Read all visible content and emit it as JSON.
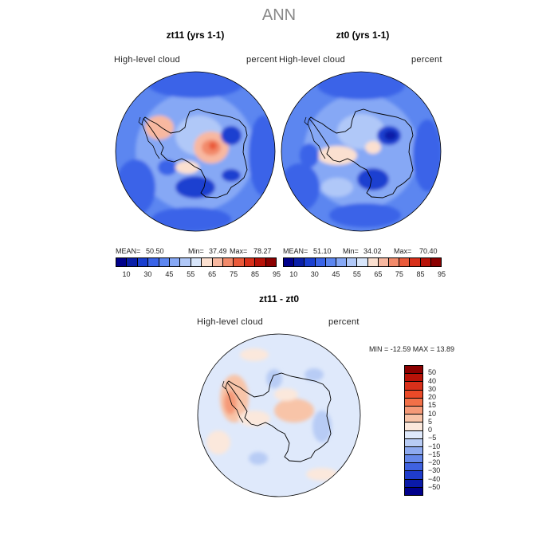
{
  "figure_title": "ANN",
  "panels": [
    {
      "title": "zt11 (yrs 1-1)",
      "variable": "High-level cloud",
      "units": "percent",
      "mean_label": "MEAN=",
      "mean": "50.50",
      "min_label": "Min=",
      "min": "37.49",
      "max_label": "Max=",
      "max": "78.27"
    },
    {
      "title": "zt0 (yrs 1-1)",
      "variable": "High-level cloud",
      "units": "percent",
      "mean_label": "MEAN=",
      "mean": "51.10",
      "min_label": "Min=",
      "min": "34.02",
      "max_label": "Max=",
      "max": "70.40"
    }
  ],
  "diff_panel": {
    "title": "zt11 - zt0",
    "variable": "High-level cloud",
    "units": "percent",
    "minmax_text": "MIN = -12.59 MAX =  13.89"
  },
  "colorbar_abs": {
    "tick_labels": [
      "10",
      "30",
      "45",
      "55",
      "65",
      "75",
      "85",
      "95"
    ],
    "colors": [
      "#00008b",
      "#0a1fa8",
      "#1a3fd0",
      "#3a64e8",
      "#5c86f0",
      "#86a8f5",
      "#b0c8f8",
      "#d8e6fb",
      "#fbe0d0",
      "#f8b8a0",
      "#f28a6a",
      "#ea5a3a",
      "#d8301a",
      "#b81208",
      "#8b0000"
    ]
  },
  "colorbar_diff": {
    "tick_labels": [
      "50",
      "40",
      "30",
      "20",
      "15",
      "10",
      "5",
      "0",
      "−5",
      "−10",
      "−15",
      "−20",
      "−30",
      "−40",
      "−50"
    ],
    "colors": [
      "#8b0000",
      "#b81208",
      "#d8301a",
      "#ea4a28",
      "#f27048",
      "#f59a78",
      "#f8c4a8",
      "#fbe8dc",
      "#dfe9fb",
      "#b8ccf5",
      "#8eaaf0",
      "#6688ea",
      "#3f62e0",
      "#1f3ccc",
      "#0a1aa8",
      "#00008b"
    ]
  }
}
